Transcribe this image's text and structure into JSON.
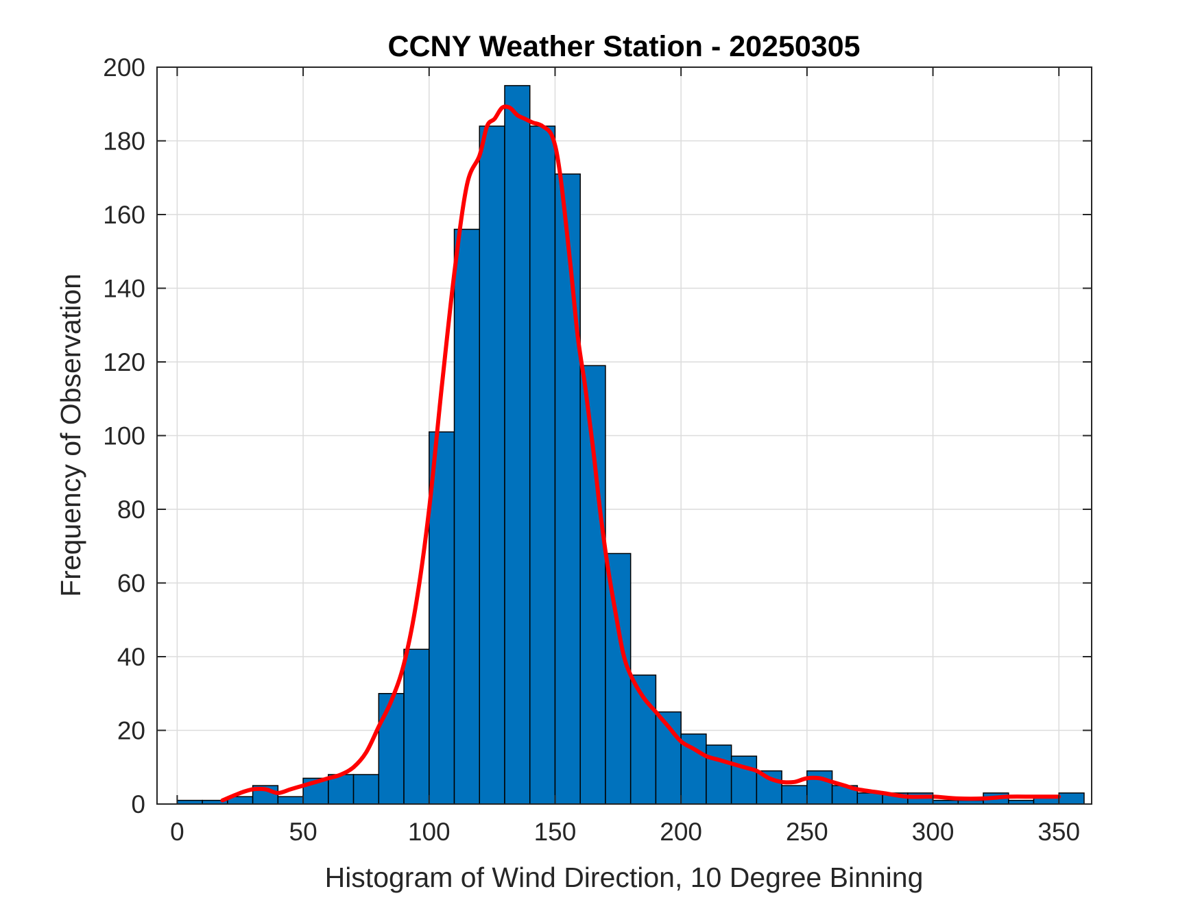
{
  "chart_data": {
    "type": "bar",
    "title": "CCNY Weather Station - 20250305",
    "xlabel": "Histogram of Wind Direction, 10 Degree Binning",
    "ylabel": "Frequency of Observation",
    "xlim": [
      -8,
      363
    ],
    "ylim": [
      0,
      200
    ],
    "xticks": [
      0,
      50,
      100,
      150,
      200,
      250,
      300,
      350
    ],
    "yticks": [
      0,
      20,
      40,
      60,
      80,
      100,
      120,
      140,
      160,
      180,
      200
    ],
    "grid": true,
    "bin_width": 10,
    "bin_edges": [
      0,
      10,
      20,
      30,
      40,
      50,
      60,
      70,
      80,
      90,
      100,
      110,
      120,
      130,
      140,
      150,
      160,
      170,
      180,
      190,
      200,
      210,
      220,
      230,
      240,
      250,
      260,
      270,
      280,
      290,
      300,
      310,
      320,
      330,
      340,
      350,
      360
    ],
    "values": [
      1,
      1,
      2,
      5,
      2,
      7,
      8,
      8,
      30,
      42,
      101,
      156,
      184,
      195,
      184,
      171,
      119,
      68,
      35,
      25,
      19,
      16,
      13,
      9,
      5,
      9,
      5,
      3,
      3,
      3,
      1,
      1,
      3,
      1,
      2,
      3
    ],
    "bar_color": "#0072BD",
    "bar_edge_color": "#000000",
    "curve": {
      "color": "#FF0000",
      "x": [
        18,
        25,
        30,
        35,
        40,
        45,
        50,
        55,
        60,
        65,
        70,
        75,
        80,
        85,
        90,
        95,
        100,
        105,
        110,
        115,
        120,
        123,
        126,
        129,
        132,
        135,
        138,
        141,
        145,
        149,
        152,
        156,
        159,
        162,
        165,
        168,
        171,
        174,
        177,
        180,
        185,
        190,
        195,
        200,
        205,
        210,
        215,
        220,
        225,
        230,
        235,
        240,
        245,
        250,
        255,
        260,
        265,
        270,
        280,
        290,
        300,
        310,
        320,
        330,
        340,
        350
      ],
      "y": [
        1,
        3,
        4,
        4,
        3,
        4,
        5,
        6,
        7,
        8,
        10,
        14,
        21,
        28,
        38,
        55,
        80,
        113,
        144,
        168,
        176,
        184,
        186,
        189,
        189,
        187,
        186,
        185,
        184,
        181,
        171,
        147,
        127,
        113,
        97,
        79,
        64,
        52,
        41,
        35,
        29,
        25,
        21,
        17,
        15,
        13,
        12,
        11,
        10,
        9,
        7,
        6,
        6,
        7,
        7,
        6,
        5,
        4,
        3,
        2,
        2,
        1.5,
        1.5,
        2,
        2,
        2
      ]
    }
  }
}
